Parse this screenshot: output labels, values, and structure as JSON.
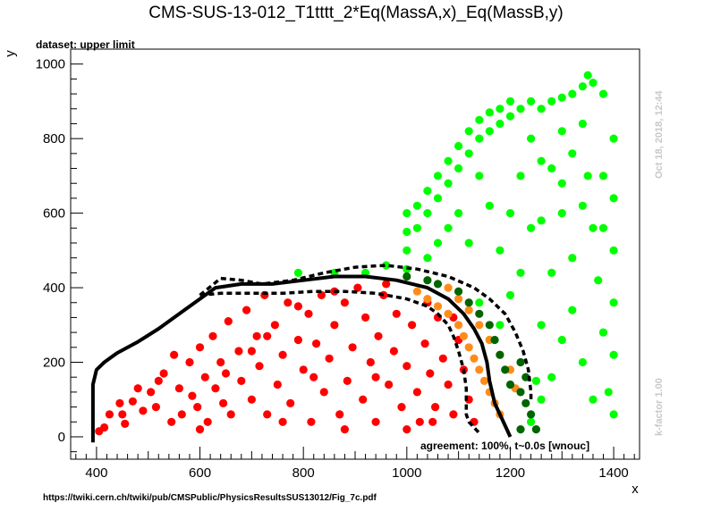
{
  "chart_data": {
    "type": "scatter",
    "title": "CMS-SUS-13-012_T1tttt_2*Eq(MassA,x)_Eq(MassB,y)",
    "subtitle": "dataset: upper limit",
    "xlabel": "x",
    "ylabel": "y",
    "xlim": [
      350,
      1450
    ],
    "ylim": [
      -60,
      1040
    ],
    "xticks": [
      400,
      600,
      800,
      1000,
      1200,
      1400
    ],
    "yticks": [
      0,
      200,
      400,
      600,
      800,
      1000
    ],
    "annotation": "agreement: 100%, t~0.0s [wnouc]",
    "timestamp": "Oct 18, 2018, 12:44",
    "kfactor": "k-factor 1.00",
    "source_url": "https://twiki.cern.ch/twiki/pub/CMSPublic/PhysicsResultsSUS13012/Fig_7c.pdf",
    "colors": {
      "excluded": "#ff0000",
      "allowed": "#00ff00",
      "excluded_border": "#ff8c1a",
      "allowed_border": "#006400",
      "curve": "#000000"
    },
    "series": [
      {
        "color": "#ff0000",
        "points": [
          [
            405,
            15
          ],
          [
            415,
            25
          ],
          [
            425,
            60
          ],
          [
            445,
            90
          ],
          [
            455,
            35
          ],
          [
            470,
            95
          ],
          [
            480,
            130
          ],
          [
            490,
            70
          ],
          [
            505,
            120
          ],
          [
            515,
            80
          ],
          [
            530,
            170
          ],
          [
            545,
            40
          ],
          [
            560,
            130
          ],
          [
            565,
            60
          ],
          [
            580,
            200
          ],
          [
            585,
            110
          ],
          [
            595,
            80
          ],
          [
            600,
            240
          ],
          [
            610,
            160
          ],
          [
            615,
            40
          ],
          [
            625,
            270
          ],
          [
            630,
            130
          ],
          [
            640,
            200
          ],
          [
            645,
            90
          ],
          [
            655,
            310
          ],
          [
            660,
            60
          ],
          [
            675,
            230
          ],
          [
            680,
            150
          ],
          [
            690,
            340
          ],
          [
            700,
            100
          ],
          [
            710,
            270
          ],
          [
            715,
            190
          ],
          [
            725,
            380
          ],
          [
            730,
            60
          ],
          [
            745,
            300
          ],
          [
            750,
            140
          ],
          [
            760,
            220
          ],
          [
            770,
            360
          ],
          [
            775,
            90
          ],
          [
            790,
            260
          ],
          [
            800,
            180
          ],
          [
            810,
            330
          ],
          [
            815,
            40
          ],
          [
            825,
            250
          ],
          [
            835,
            380
          ],
          [
            840,
            120
          ],
          [
            850,
            210
          ],
          [
            860,
            300
          ],
          [
            870,
            60
          ],
          [
            880,
            360
          ],
          [
            885,
            150
          ],
          [
            895,
            240
          ],
          [
            905,
            400
          ],
          [
            915,
            100
          ],
          [
            920,
            320
          ],
          [
            930,
            200
          ],
          [
            940,
            40
          ],
          [
            945,
            270
          ],
          [
            955,
            380
          ],
          [
            965,
            140
          ],
          [
            975,
            230
          ],
          [
            980,
            330
          ],
          [
            990,
            80
          ],
          [
            1000,
            190
          ],
          [
            1010,
            300
          ],
          [
            1020,
            120
          ],
          [
            1025,
            40
          ],
          [
            1035,
            250
          ],
          [
            1045,
            170
          ],
          [
            1055,
            80
          ],
          [
            1060,
            320
          ],
          [
            1070,
            210
          ],
          [
            1080,
            140
          ],
          [
            1090,
            60
          ],
          [
            1100,
            260
          ],
          [
            1110,
            180
          ],
          [
            1120,
            100
          ],
          [
            1130,
            40
          ],
          [
            450,
            60
          ],
          [
            520,
            150
          ],
          [
            550,
            220
          ],
          [
            600,
            20
          ],
          [
            650,
            170
          ],
          [
            700,
            230
          ],
          [
            760,
            40
          ],
          [
            820,
            160
          ],
          [
            880,
            20
          ],
          [
            940,
            160
          ],
          [
            1000,
            20
          ],
          [
            1050,
            40
          ],
          [
            730,
            270
          ],
          [
            790,
            350
          ],
          [
            860,
            390
          ],
          [
            960,
            410
          ],
          [
            1040,
            360
          ],
          [
            1090,
            320
          ]
        ]
      },
      {
        "color": "#00ff00",
        "points": [
          [
            1000,
            450
          ],
          [
            1000,
            500
          ],
          [
            1000,
            550
          ],
          [
            1000,
            600
          ],
          [
            1020,
            560
          ],
          [
            1020,
            620
          ],
          [
            1040,
            600
          ],
          [
            1040,
            660
          ],
          [
            1060,
            640
          ],
          [
            1060,
            700
          ],
          [
            1080,
            680
          ],
          [
            1080,
            740
          ],
          [
            1100,
            720
          ],
          [
            1100,
            780
          ],
          [
            1120,
            760
          ],
          [
            1120,
            820
          ],
          [
            1140,
            800
          ],
          [
            1140,
            850
          ],
          [
            1160,
            820
          ],
          [
            1160,
            870
          ],
          [
            1180,
            840
          ],
          [
            1180,
            880
          ],
          [
            1200,
            860
          ],
          [
            1200,
            900
          ],
          [
            1220,
            880
          ],
          [
            1240,
            900
          ],
          [
            1260,
            880
          ],
          [
            1280,
            900
          ],
          [
            1300,
            910
          ],
          [
            1320,
            920
          ],
          [
            1340,
            940
          ],
          [
            1350,
            970
          ],
          [
            1360,
            950
          ],
          [
            1380,
            920
          ],
          [
            1400,
            800
          ],
          [
            1400,
            640
          ],
          [
            1400,
            500
          ],
          [
            1400,
            360
          ],
          [
            1400,
            220
          ],
          [
            1400,
            60
          ],
          [
            1390,
            120
          ],
          [
            1380,
            280
          ],
          [
            1370,
            420
          ],
          [
            1360,
            560
          ],
          [
            1350,
            700
          ],
          [
            1340,
            840
          ],
          [
            1320,
            760
          ],
          [
            1300,
            600
          ],
          [
            1280,
            440
          ],
          [
            1260,
            300
          ],
          [
            1250,
            150
          ],
          [
            1240,
            40
          ],
          [
            1260,
            580
          ],
          [
            1280,
            720
          ],
          [
            1300,
            820
          ],
          [
            1320,
            480
          ],
          [
            1340,
            200
          ],
          [
            1360,
            100
          ],
          [
            1200,
            600
          ],
          [
            1220,
            700
          ],
          [
            1240,
            800
          ],
          [
            1180,
            500
          ],
          [
            1160,
            620
          ],
          [
            1140,
            700
          ],
          [
            1100,
            600
          ],
          [
            1060,
            520
          ],
          [
            1300,
            260
          ],
          [
            1320,
            340
          ],
          [
            1280,
            160
          ],
          [
            1260,
            100
          ],
          [
            1220,
            440
          ],
          [
            1240,
            560
          ],
          [
            1200,
            380
          ],
          [
            1180,
            300
          ],
          [
            1160,
            260
          ],
          [
            1140,
            360
          ],
          [
            1120,
            520
          ],
          [
            1080,
            560
          ],
          [
            1040,
            480
          ],
          [
            960,
            460
          ],
          [
            920,
            440
          ],
          [
            860,
            440
          ],
          [
            790,
            440
          ],
          [
            1260,
            740
          ],
          [
            1300,
            680
          ],
          [
            1340,
            620
          ],
          [
            1380,
            560
          ],
          [
            1380,
            700
          ]
        ]
      },
      {
        "color": "#ff8c1a",
        "points": [
          [
            1020,
            390
          ],
          [
            1040,
            370
          ],
          [
            1060,
            350
          ],
          [
            1080,
            330
          ],
          [
            1100,
            300
          ],
          [
            1110,
            270
          ],
          [
            1120,
            240
          ],
          [
            1130,
            210
          ],
          [
            1140,
            180
          ],
          [
            1150,
            150
          ],
          [
            1160,
            120
          ],
          [
            1170,
            90
          ],
          [
            1180,
            60
          ],
          [
            1080,
            400
          ],
          [
            1100,
            370
          ],
          [
            1120,
            340
          ],
          [
            1140,
            300
          ],
          [
            1160,
            260
          ],
          [
            1180,
            220
          ],
          [
            1200,
            180
          ],
          [
            1210,
            130
          ]
        ]
      },
      {
        "color": "#006400",
        "points": [
          [
            1000,
            430
          ],
          [
            1040,
            420
          ],
          [
            1060,
            410
          ],
          [
            1100,
            390
          ],
          [
            1120,
            360
          ],
          [
            1140,
            330
          ],
          [
            1160,
            300
          ],
          [
            1170,
            260
          ],
          [
            1180,
            220
          ],
          [
            1190,
            180
          ],
          [
            1200,
            140
          ],
          [
            1220,
            120
          ],
          [
            1230,
            90
          ],
          [
            1240,
            60
          ],
          [
            1250,
            20
          ],
          [
            1220,
            20
          ],
          [
            1220,
            200
          ],
          [
            1230,
            160
          ]
        ]
      }
    ],
    "curves": [
      {
        "style": "solid",
        "points": [
          [
            393,
            -15
          ],
          [
            393,
            140
          ],
          [
            400,
            180
          ],
          [
            415,
            200
          ],
          [
            440,
            225
          ],
          [
            480,
            255
          ],
          [
            520,
            290
          ],
          [
            560,
            330
          ],
          [
            600,
            370
          ],
          [
            630,
            400
          ],
          [
            680,
            410
          ],
          [
            740,
            410
          ],
          [
            800,
            420
          ],
          [
            860,
            430
          ],
          [
            920,
            430
          ],
          [
            980,
            420
          ],
          [
            1040,
            400
          ],
          [
            1080,
            370
          ],
          [
            1110,
            330
          ],
          [
            1130,
            290
          ],
          [
            1145,
            250
          ],
          [
            1155,
            200
          ],
          [
            1160,
            150
          ],
          [
            1170,
            90
          ],
          [
            1190,
            30
          ],
          [
            1200,
            0
          ]
        ]
      },
      {
        "style": "dashed",
        "points": [
          [
            600,
            380
          ],
          [
            640,
            425
          ],
          [
            680,
            420
          ],
          [
            720,
            410
          ],
          [
            780,
            420
          ],
          [
            840,
            440
          ],
          [
            900,
            455
          ],
          [
            960,
            460
          ],
          [
            1020,
            450
          ],
          [
            1080,
            430
          ],
          [
            1130,
            400
          ],
          [
            1160,
            370
          ],
          [
            1190,
            330
          ],
          [
            1210,
            280
          ],
          [
            1225,
            230
          ],
          [
            1235,
            180
          ],
          [
            1240,
            120
          ],
          [
            1240,
            100
          ]
        ]
      },
      {
        "style": "dashed",
        "points": [
          [
            600,
            380
          ],
          [
            640,
            385
          ],
          [
            700,
            385
          ],
          [
            760,
            385
          ],
          [
            820,
            390
          ],
          [
            880,
            390
          ],
          [
            940,
            385
          ],
          [
            1000,
            370
          ],
          [
            1040,
            350
          ],
          [
            1060,
            330
          ],
          [
            1080,
            300
          ],
          [
            1090,
            270
          ],
          [
            1100,
            230
          ],
          [
            1110,
            180
          ],
          [
            1115,
            130
          ],
          [
            1115,
            60
          ],
          [
            1120,
            40
          ],
          [
            1140,
            10
          ]
        ]
      }
    ]
  }
}
